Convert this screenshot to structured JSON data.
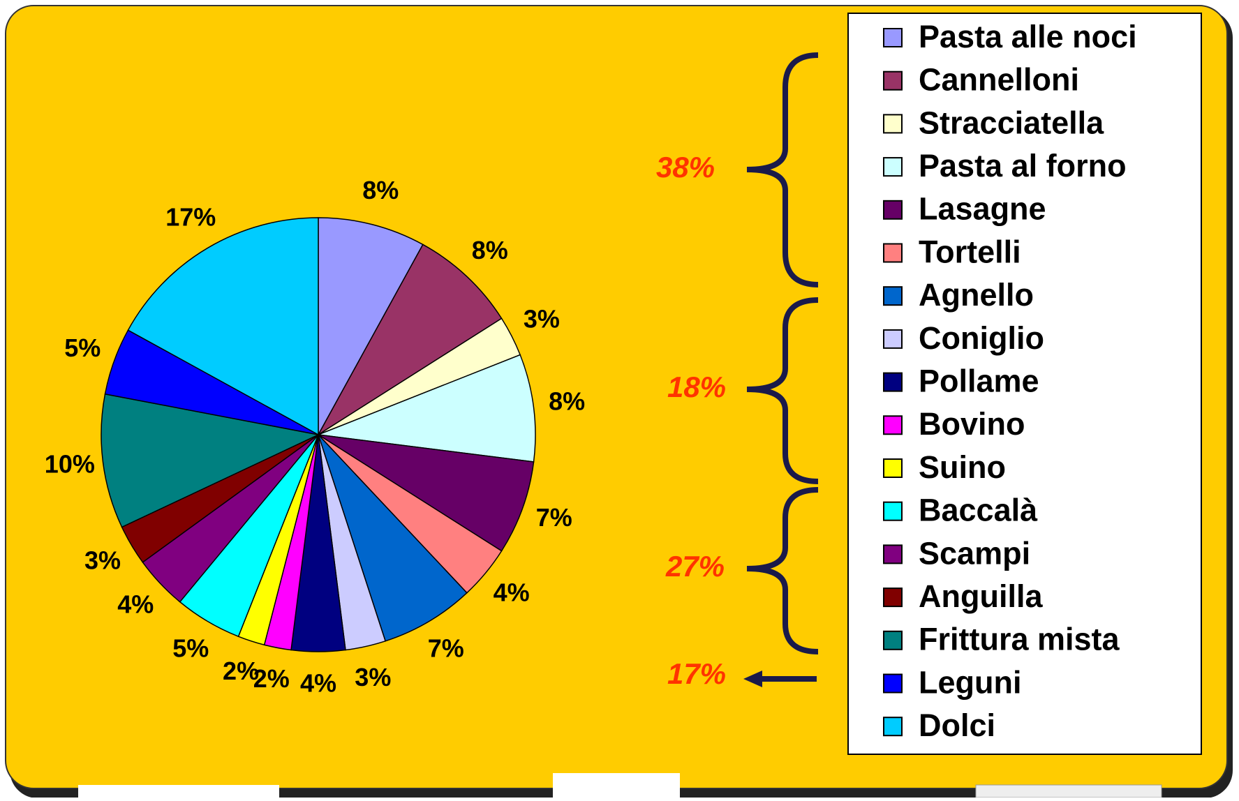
{
  "chart_data": {
    "type": "pie",
    "categories": [
      "Pasta alle noci",
      "Cannelloni",
      "Stracciatella",
      "Pasta al forno",
      "Lasagne",
      "Tortelli",
      "Agnello",
      "Coniglio",
      "Pollame",
      "Bovino",
      "Suino",
      "Baccalà",
      "Scampi",
      "Anguilla",
      "Frittura mista",
      "Leguni",
      "Dolci"
    ],
    "values": [
      8,
      8,
      3,
      8,
      7,
      4,
      7,
      3,
      4,
      2,
      2,
      5,
      4,
      3,
      10,
      5,
      17
    ],
    "value_labels": [
      "8%",
      "8%",
      "3%",
      "8%",
      "7%",
      "4%",
      "7%",
      "3%",
      "4%",
      "2%",
      "2%",
      "5%",
      "4%",
      "3%",
      "10%",
      "5%",
      "17%"
    ],
    "colors": [
      "#9999FF",
      "#993366",
      "#FFFFCC",
      "#CCFFFF",
      "#660066",
      "#FF8080",
      "#0066CC",
      "#CCCCFF",
      "#000080",
      "#FF00FF",
      "#FFFF00",
      "#00FFFF",
      "#800080",
      "#800000",
      "#008080",
      "#0000FF",
      "#00CCFF"
    ],
    "annotations": [
      "38%",
      "18%",
      "27%",
      "17%"
    ]
  }
}
